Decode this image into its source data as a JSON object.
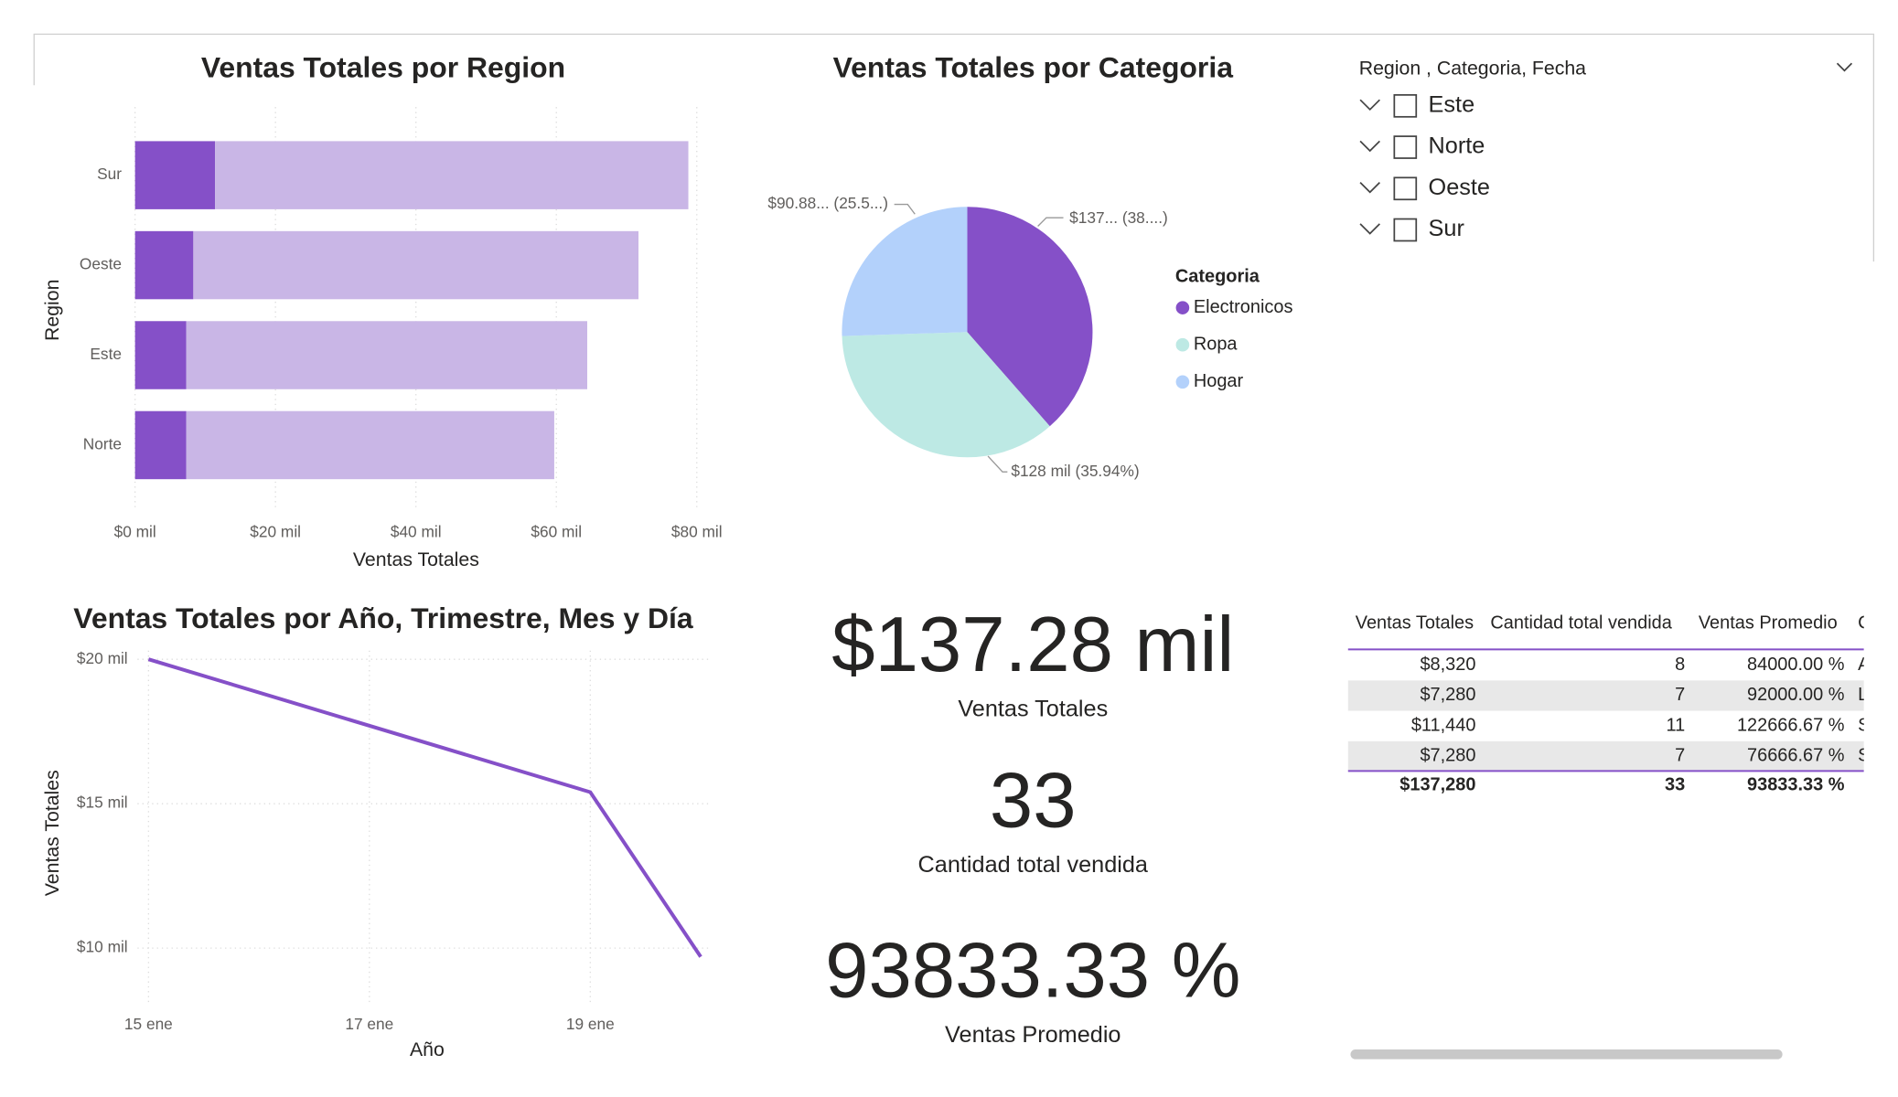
{
  "chart_data": [
    {
      "type": "bar",
      "orientation": "horizontal",
      "stacked": true,
      "title": "Ventas Totales por Region",
      "x_label": "Ventas Totales",
      "y_label": "Region",
      "categories": [
        "Sur",
        "Oeste",
        "Este",
        "Norte"
      ],
      "series": [
        {
          "color": "#8550c8",
          "values": [
            11.4,
            8.3,
            7.3,
            7.3
          ]
        },
        {
          "color": "#c9b6e6",
          "values": [
            67.4,
            63.4,
            57.1,
            52.4
          ]
        }
      ],
      "xlim": [
        0,
        83
      ],
      "xticks": [
        {
          "value": 0,
          "label": "$0 mil"
        },
        {
          "value": 20,
          "label": "$20 mil"
        },
        {
          "value": 40,
          "label": "$40 mil"
        },
        {
          "value": 60,
          "label": "$60 mil"
        },
        {
          "value": 80,
          "label": "$80 mil"
        }
      ],
      "grid": true
    },
    {
      "type": "pie",
      "title": "Ventas Totales por Categoria",
      "legend_title": "Categoria",
      "categories": [
        "Electronicos",
        "Ropa",
        "Hogar"
      ],
      "values": [
        137.3,
        128,
        90.88
      ],
      "value_labels": [
        "$137... (38....)",
        "$128 mil (35.94%)",
        "$90.88... (25.5...)"
      ],
      "colors": [
        "#8550c8",
        "#bde9e4",
        "#b3d1fb"
      ]
    },
    {
      "type": "line",
      "title": "Ventas Totales por Año, Trimestre, Mes y Día",
      "x_label": "Año",
      "y_label": "Ventas Totales",
      "x": [
        15,
        19,
        20
      ],
      "values": [
        20,
        15.4,
        9.7
      ],
      "color": "#8550c8",
      "xlim": [
        14.9,
        20.1
      ],
      "xticks": [
        {
          "value": 15,
          "label": "15 ene"
        },
        {
          "value": 17,
          "label": "17 ene"
        },
        {
          "value": 19,
          "label": "19 ene"
        }
      ],
      "ylim": [
        8.3,
        20.3
      ],
      "yticks": [
        {
          "value": 10,
          "label": "$10 mil"
        },
        {
          "value": 15,
          "label": "$15 mil"
        },
        {
          "value": 20,
          "label": "$20 mil"
        }
      ],
      "grid": true
    }
  ],
  "cards": [
    {
      "value": "$137.28 mil",
      "label": "Ventas Totales"
    },
    {
      "value": "33",
      "label": "Cantidad total vendida"
    },
    {
      "value": "93833.33 %",
      "label": "Ventas Promedio"
    }
  ],
  "slicer": {
    "title": "Region , Categoria, Fecha",
    "items": [
      "Este",
      "Norte",
      "Oeste",
      "Sur"
    ]
  },
  "table": {
    "columns": [
      "Ventas Totales",
      "Cantidad total vendida",
      "Ventas Promedio",
      "C"
    ],
    "rows": [
      [
        "$8,320",
        "8",
        "84000.00 %",
        "A"
      ],
      [
        "$7,280",
        "7",
        "92000.00 %",
        "L"
      ],
      [
        "$11,440",
        "11",
        "122666.67 %",
        "S"
      ],
      [
        "$7,280",
        "7",
        "76666.67 %",
        "S"
      ]
    ],
    "total": [
      "$137,280",
      "33",
      "93833.33 %"
    ]
  }
}
